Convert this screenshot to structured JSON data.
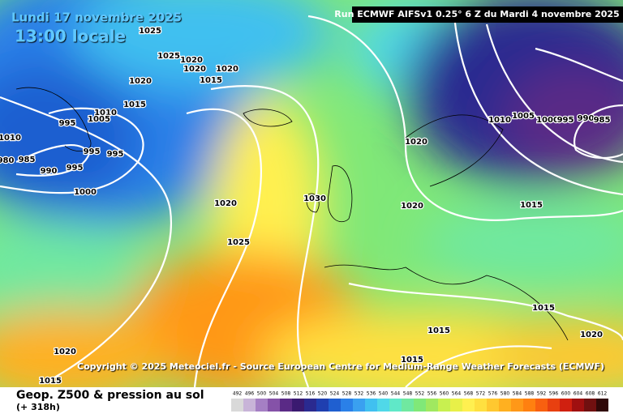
{
  "header": {
    "date": "Lundi 17 novembre 2025",
    "time": "13:00 locale",
    "run": "Run ECMWF AIFSv1 0.25° 6 Z du Mardi 4 novembre 2025"
  },
  "copyright": "Copyright © 2025 Meteociel.fr - Source European Centre for Medium-Range Weather Forecasts (ECMWF)",
  "footer": {
    "title": "Geop. Z500 & pression au sol",
    "lead": "(+ 318h)"
  },
  "isobar_labels": [
    "1025",
    "1025",
    "1020",
    "1020",
    "1020",
    "1015",
    "1020",
    "1015",
    "1010",
    "1005",
    "995",
    "995",
    "995",
    "985",
    "980",
    "990",
    "995",
    "1000",
    "1020",
    "1025",
    "1030",
    "1020",
    "1020",
    "1010",
    "1005",
    "1000",
    "995",
    "990",
    "985",
    "1015",
    "1015",
    "1015",
    "1015",
    "1020",
    "1020",
    "1015",
    "1010"
  ],
  "colorbar": {
    "labels": [
      492,
      496,
      500,
      504,
      508,
      512,
      516,
      520,
      524,
      528,
      532,
      536,
      540,
      544,
      548,
      552,
      556,
      560,
      564,
      568,
      572,
      576,
      580,
      584,
      588,
      592,
      596,
      600,
      604,
      608,
      612
    ],
    "colors": [
      "#d9d9d9",
      "#c8b4d8",
      "#a57fc4",
      "#8552a8",
      "#5a2a86",
      "#3a1a70",
      "#2a2a90",
      "#1f3fb0",
      "#1f5fd0",
      "#2a80e8",
      "#3aa0f0",
      "#40c0f0",
      "#50d8e8",
      "#60e8c8",
      "#70e8a0",
      "#80e878",
      "#a0e860",
      "#c8f050",
      "#e8f048",
      "#fff050",
      "#ffe040",
      "#ffc830",
      "#ffb020",
      "#ff9818",
      "#ff8010",
      "#f86010",
      "#e84010",
      "#d02010",
      "#a01010",
      "#701010",
      "#300808"
    ]
  }
}
